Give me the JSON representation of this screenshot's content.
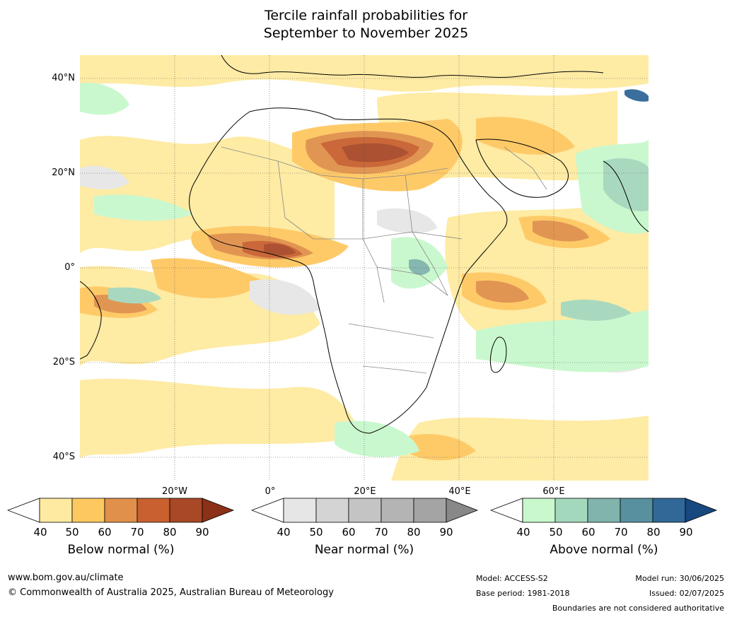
{
  "title_line1": "Tercile rainfall probabilities for",
  "title_line2": "September to November 2025",
  "map": {
    "lat_labels": [
      "40°N",
      "20°N",
      "0°",
      "20°S",
      "40°S"
    ],
    "lon_labels": [
      "20°W",
      "0°",
      "20°E",
      "40°E",
      "60°E"
    ]
  },
  "legends": {
    "below": {
      "label": "Below normal (%)",
      "ticks": [
        "40",
        "50",
        "60",
        "70",
        "80",
        "90"
      ],
      "colors": [
        "#ffffff",
        "#feeaa0",
        "#fec860",
        "#e0904a",
        "#c86030",
        "#a84826",
        "#8c3018"
      ]
    },
    "near": {
      "label": "Near normal (%)",
      "ticks": [
        "40",
        "50",
        "60",
        "70",
        "80",
        "90"
      ],
      "colors": [
        "#ffffff",
        "#e6e6e6",
        "#d4d4d4",
        "#c4c4c4",
        "#b4b4b4",
        "#a4a4a4",
        "#888888"
      ]
    },
    "above": {
      "label": "Above normal (%)",
      "ticks": [
        "40",
        "50",
        "60",
        "70",
        "80",
        "90"
      ],
      "colors": [
        "#ffffff",
        "#c8f8cc",
        "#a4d8bc",
        "#80b4ac",
        "#5890a0",
        "#306898",
        "#184880"
      ]
    }
  },
  "footer": {
    "website": "www.bom.gov.au/climate",
    "copyright": "© Commonwealth of Australia 2025, Australian Bureau of Meteorology",
    "model": "Model: ACCESS-S2",
    "base_period": "Base period: 1981-2018",
    "model_run": "Model run: 30/06/2025",
    "issued": "Issued: 02/07/2025",
    "disclaimer": "Boundaries are not considered authoritative"
  }
}
